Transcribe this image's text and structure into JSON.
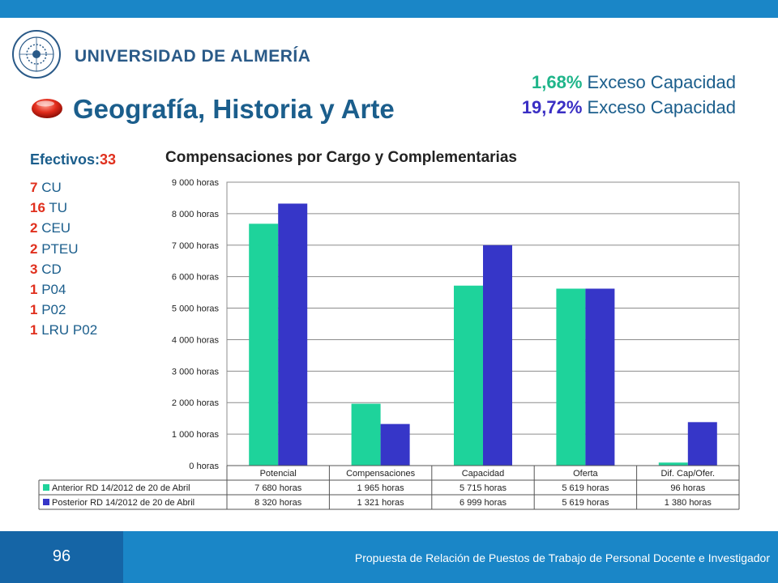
{
  "header": {
    "university": "UNIVERSIDAD DE ALMERÍA",
    "page_title": "Geografía, Historia y Arte",
    "exceso": [
      {
        "pct": "1,68%",
        "label": " Exceso Capacidad",
        "color": "#1fb58a"
      },
      {
        "pct": "19,72%",
        "label": " Exceso Capacidad",
        "color": "#3a2fc4"
      }
    ]
  },
  "staff": {
    "efectivos_label": "Efectivos:",
    "efectivos_count": "33",
    "items": [
      {
        "count": "7",
        "label": " CU"
      },
      {
        "count": "16",
        "label": " TU"
      },
      {
        "count": "2",
        "label": " CEU"
      },
      {
        "count": "2",
        "label": " PTEU"
      },
      {
        "count": "3",
        "label": " CD"
      },
      {
        "count": "1",
        "label": " P04"
      },
      {
        "count": "1",
        "label": " P02"
      },
      {
        "count": "1",
        "label": " LRU P02"
      }
    ]
  },
  "chart_data": {
    "type": "bar",
    "title": "Compensaciones por Cargo y Complementarias",
    "categories": [
      "Potencial",
      "Compensaciones",
      "Capacidad",
      "Oferta",
      "Dif. Cap/Ofer."
    ],
    "ylim": [
      0,
      9000
    ],
    "yticks": [
      0,
      1000,
      2000,
      3000,
      4000,
      5000,
      6000,
      7000,
      8000,
      9000
    ],
    "ytick_labels": [
      "0 horas",
      "1 000 horas",
      "2 000 horas",
      "3 000 horas",
      "4 000 horas",
      "5 000 horas",
      "6 000 horas",
      "7 000 horas",
      "8 000 horas",
      "9 000 horas"
    ],
    "grid": true,
    "legend": "data-table",
    "series": [
      {
        "name": "Anterior RD 14/2012 de 20 de Abril",
        "color": "#1ed39b",
        "values": [
          7680,
          1965,
          5715,
          5619,
          96
        ],
        "labels": [
          "7 680 horas",
          "1 965 horas",
          "5 715 horas",
          "5 619 horas",
          "96 horas"
        ]
      },
      {
        "name": "Posterior RD 14/2012 de 20 de Abril",
        "color": "#3636c8",
        "values": [
          8320,
          1321,
          6999,
          5619,
          1380
        ],
        "labels": [
          "8 320 horas",
          "1 321 horas",
          "6 999 horas",
          "5 619 horas",
          "1 380 horas"
        ]
      }
    ]
  },
  "footer": {
    "page_number": "96",
    "text": "Propuesta de Relación de Puestos de Trabajo de Personal Docente e Investigador"
  },
  "colors": {
    "top_bar": "#1a86c7",
    "footer_dark": "#1565a6",
    "title_blue": "#1b5e8c",
    "accent_red": "#e0301e"
  }
}
